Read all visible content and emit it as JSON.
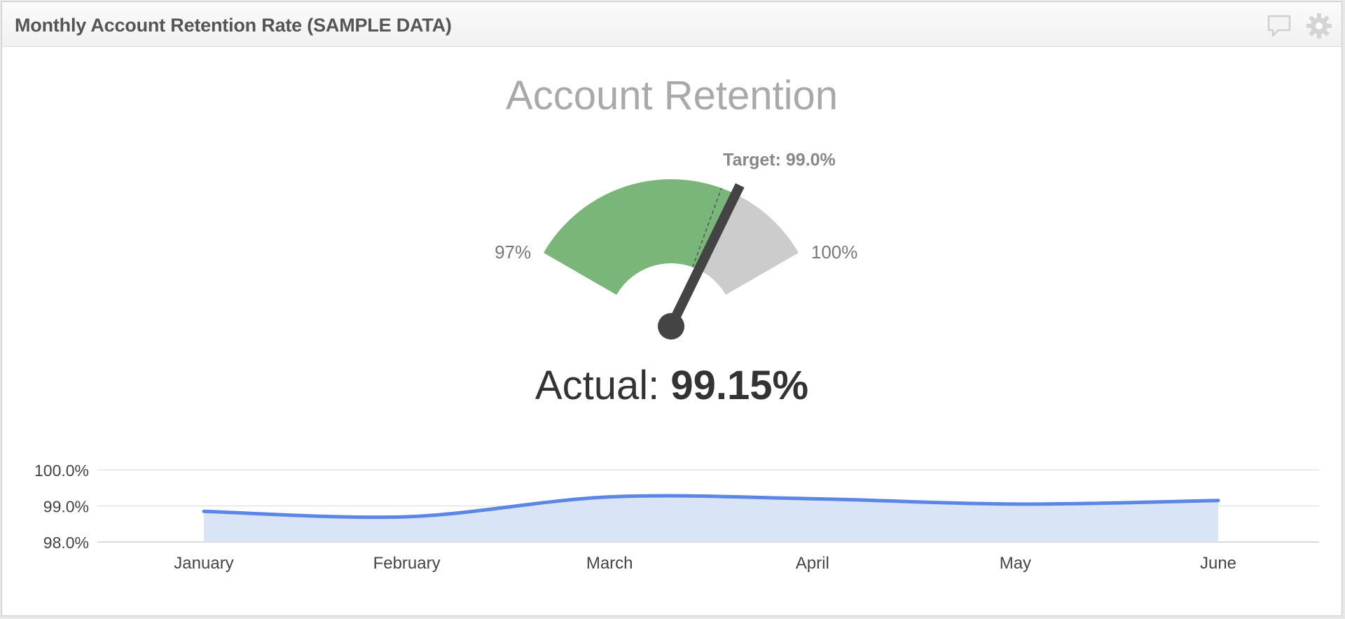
{
  "header": {
    "title": "Monthly Account Retention Rate (SAMPLE DATA)",
    "comment_icon": "comment-icon",
    "settings_icon": "gear-icon"
  },
  "gauge": {
    "title": "Account Retention",
    "min": 97,
    "max": 100,
    "min_label": "97%",
    "max_label": "100%",
    "target": 99.0,
    "target_label": "Target: 99.0%",
    "actual": 99.15,
    "actual_prefix": "Actual:",
    "actual_value": "99.15%",
    "colors": {
      "filled": "#7ab57a",
      "empty": "#cccccc",
      "needle": "#444444"
    }
  },
  "chart_data": {
    "type": "area",
    "categories": [
      "January",
      "February",
      "March",
      "April",
      "May",
      "June"
    ],
    "series": [
      {
        "values": [
          98.85,
          98.7,
          99.25,
          99.2,
          99.05,
          99.15
        ]
      }
    ],
    "ylim": [
      98.0,
      100.0
    ],
    "yticks": [
      "100.0%",
      "99.0%",
      "98.0%"
    ],
    "ytick_values": [
      100.0,
      99.0,
      98.0
    ],
    "grid": true,
    "colors": {
      "line": "#5b86e5",
      "fill": "#dae4f7"
    }
  }
}
